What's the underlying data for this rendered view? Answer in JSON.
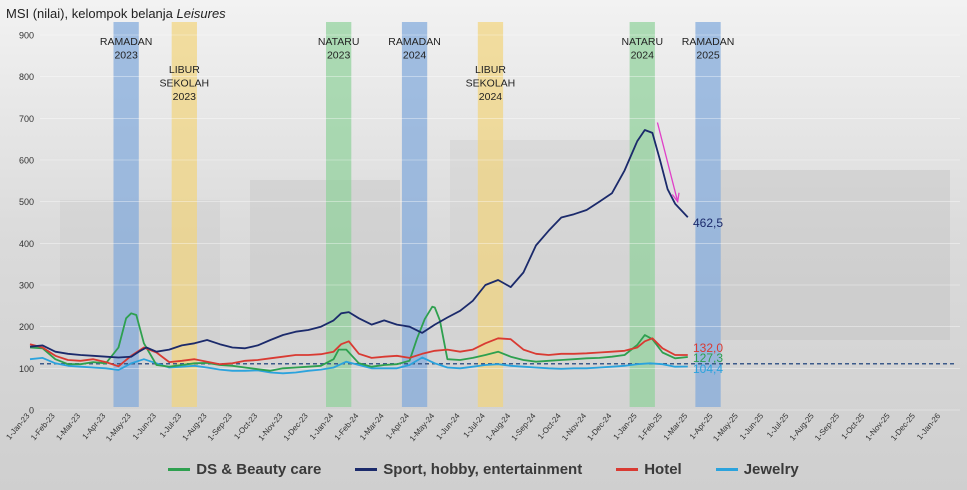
{
  "title": {
    "text": "MSI (nilai), kelompok belanja ",
    "italic": "Leisures"
  },
  "chart_data": {
    "type": "line",
    "ylim": [
      0,
      900
    ],
    "yticks": [
      0,
      100,
      200,
      300,
      400,
      500,
      600,
      700,
      800,
      900
    ],
    "xticks": [
      "1-Jan-23",
      "1-Feb-23",
      "1-Mar-23",
      "1-Apr-23",
      "1-May-23",
      "1-Jun-23",
      "1-Jul-23",
      "1-Aug-23",
      "1-Sep-23",
      "1-Oct-23",
      "1-Nov-23",
      "1-Dec-23",
      "1-Jan-24",
      "1-Feb-24",
      "1-Mar-24",
      "1-Apr-24",
      "1-May-24",
      "1-Jun-24",
      "1-Jul-24",
      "1-Aug-24",
      "1-Sep-24",
      "1-Oct-24",
      "1-Nov-24",
      "1-Dec-24",
      "1-Jan-25",
      "1-Feb-25",
      "1-Mar-25",
      "1-Apr-25",
      "1-May-25",
      "1-Jun-25",
      "1-Jul-25",
      "1-Aug-25",
      "1-Sep-25",
      "1-Oct-25",
      "1-Nov-25",
      "1-Dec-25",
      "1-Jan-26"
    ],
    "baseline": 111,
    "bands": [
      {
        "label": "RAMADAN\n2023",
        "start": 3.3,
        "end": 4.3,
        "color": "#7fa8dc",
        "label_row": 1
      },
      {
        "label": "LIBUR\nSEKOLAH\n2023",
        "start": 5.6,
        "end": 6.6,
        "color": "#f2d47c",
        "label_row": 2
      },
      {
        "label": "NATARU\n2023",
        "start": 11.7,
        "end": 12.7,
        "color": "#8fd19a",
        "label_row": 1
      },
      {
        "label": "RAMADAN\n2024",
        "start": 14.7,
        "end": 15.7,
        "color": "#7fa8dc",
        "label_row": 1
      },
      {
        "label": "LIBUR\nSEKOLAH\n2024",
        "start": 17.7,
        "end": 18.7,
        "color": "#f2d47c",
        "label_row": 2
      },
      {
        "label": "NATARU\n2024",
        "start": 23.7,
        "end": 24.7,
        "color": "#8fd19a",
        "label_row": 1
      },
      {
        "label": "RAMADAN\n2025",
        "start": 26.3,
        "end": 27.3,
        "color": "#7fa8dc",
        "label_row": 1
      }
    ],
    "series": [
      {
        "name": "DS & Beauty care",
        "color": "#2ea04f",
        "x": [
          0,
          0.5,
          1,
          1.5,
          2,
          2.5,
          3,
          3.5,
          3.8,
          4,
          4.2,
          4.5,
          5,
          5.5,
          6,
          6.5,
          7,
          7.5,
          8,
          8.5,
          9,
          9.5,
          10,
          10.5,
          11,
          11.5,
          12,
          12.2,
          12.5,
          13,
          13.5,
          14,
          14.5,
          15,
          15.3,
          15.6,
          15.9,
          16,
          16.2,
          16.5,
          17,
          17.5,
          18,
          18.5,
          19,
          19.5,
          20,
          20.5,
          21,
          21.5,
          22,
          22.5,
          23,
          23.5,
          24,
          24.3,
          24.6,
          25,
          25.5,
          26
        ],
        "values": [
          150,
          148,
          122,
          110,
          110,
          115,
          112,
          150,
          220,
          232,
          228,
          160,
          108,
          104,
          108,
          112,
          113,
          108,
          106,
          102,
          98,
          94,
          100,
          102,
          104,
          106,
          122,
          145,
          145,
          112,
          104,
          108,
          110,
          118,
          172,
          218,
          248,
          246,
          215,
          122,
          120,
          125,
          132,
          140,
          128,
          120,
          116,
          118,
          120,
          122,
          124,
          125,
          128,
          132,
          156,
          180,
          170,
          138,
          124,
          127.3
        ]
      },
      {
        "name": "Sport, hobby, entertainment",
        "color": "#1b2a6b",
        "x": [
          0,
          0.5,
          1,
          1.5,
          2,
          2.5,
          3,
          3.5,
          4,
          4.3,
          4.6,
          5,
          5.5,
          6,
          6.5,
          7,
          7.5,
          8,
          8.5,
          9,
          9.5,
          10,
          10.5,
          11,
          11.5,
          12,
          12.3,
          12.6,
          13,
          13.5,
          14,
          14.5,
          15,
          15.5,
          16,
          16.5,
          17,
          17.5,
          18,
          18.5,
          19,
          19.5,
          20,
          20.5,
          21,
          21.5,
          22,
          22.5,
          23,
          23.5,
          24,
          24.3,
          24.6,
          24.9,
          25.2,
          25.5,
          26
        ],
        "values": [
          152,
          155,
          140,
          135,
          132,
          130,
          128,
          126,
          128,
          140,
          150,
          140,
          145,
          155,
          160,
          168,
          158,
          150,
          148,
          155,
          168,
          180,
          188,
          192,
          200,
          215,
          232,
          235,
          220,
          205,
          215,
          205,
          200,
          185,
          205,
          222,
          238,
          262,
          300,
          312,
          295,
          330,
          395,
          430,
          462,
          470,
          480,
          500,
          520,
          575,
          645,
          672,
          665,
          600,
          530,
          495,
          462.5
        ]
      },
      {
        "name": "Hotel",
        "color": "#d93a32",
        "x": [
          0,
          0.5,
          1,
          1.5,
          2,
          2.5,
          3,
          3.5,
          4,
          4.5,
          5,
          5.5,
          6,
          6.5,
          7,
          7.5,
          8,
          8.5,
          9,
          9.5,
          10,
          10.5,
          11,
          11.5,
          12,
          12.3,
          12.6,
          13,
          13.5,
          14,
          14.5,
          15,
          15.5,
          16,
          16.5,
          17,
          17.5,
          18,
          18.5,
          19,
          19.5,
          20,
          20.5,
          21,
          21.5,
          22,
          22.5,
          23,
          23.5,
          24,
          24.3,
          24.6,
          25,
          25.5,
          26
        ],
        "values": [
          158,
          150,
          130,
          120,
          118,
          122,
          115,
          105,
          130,
          150,
          138,
          115,
          118,
          122,
          116,
          110,
          112,
          118,
          120,
          124,
          128,
          132,
          132,
          134,
          140,
          158,
          165,
          135,
          125,
          128,
          130,
          125,
          135,
          142,
          145,
          140,
          145,
          160,
          172,
          170,
          145,
          135,
          132,
          135,
          135,
          136,
          138,
          140,
          142,
          150,
          165,
          172,
          148,
          132,
          132.0
        ]
      },
      {
        "name": "Jewelry",
        "color": "#2ba3dd",
        "x": [
          0,
          0.5,
          1,
          1.5,
          2,
          2.5,
          3,
          3.5,
          4,
          4.5,
          5,
          5.5,
          6,
          6.5,
          7,
          7.5,
          8,
          8.5,
          9,
          9.5,
          10,
          10.5,
          11,
          11.5,
          12,
          12.5,
          13,
          13.5,
          14,
          14.5,
          15,
          15.5,
          16,
          16.5,
          17,
          17.5,
          18,
          18.5,
          19,
          19.5,
          20,
          20.5,
          21,
          21.5,
          22,
          22.5,
          23,
          23.5,
          24,
          24.5,
          25,
          25.5,
          26
        ],
        "values": [
          122,
          125,
          112,
          106,
          104,
          102,
          100,
          96,
          112,
          122,
          112,
          102,
          104,
          106,
          102,
          97,
          94,
          94,
          95,
          90,
          88,
          90,
          94,
          97,
          102,
          116,
          108,
          100,
          100,
          100,
          108,
          126,
          112,
          102,
          100,
          104,
          108,
          110,
          106,
          104,
          102,
          100,
          99,
          100,
          100,
          102,
          104,
          106,
          110,
          112,
          110,
          104,
          104.4
        ]
      }
    ],
    "end_labels": [
      {
        "series": "Sport, hobby, entertainment",
        "text": "462,5",
        "color": "#1b2a6b",
        "value": 462.5
      },
      {
        "series": "Hotel",
        "text": "132,0",
        "color": "#d93a32",
        "value": 132.0
      },
      {
        "series": "DS & Beauty care",
        "text": "127,3",
        "color": "#2ea04f",
        "value": 127.3
      },
      {
        "series": "Jewelry",
        "text": "104,4",
        "color": "#2ba3dd",
        "value": 104.4
      }
    ],
    "arrow": {
      "from_x": 24.8,
      "from_y": 690,
      "to_x": 25.6,
      "to_y": 500,
      "color": "#e040c8"
    },
    "legend": [
      {
        "label": "DS & Beauty care",
        "color": "#2ea04f"
      },
      {
        "label": "Sport, hobby, entertainment",
        "color": "#1b2a6b"
      },
      {
        "label": "Hotel",
        "color": "#d93a32"
      },
      {
        "label": "Jewelry",
        "color": "#2ba3dd"
      }
    ]
  }
}
